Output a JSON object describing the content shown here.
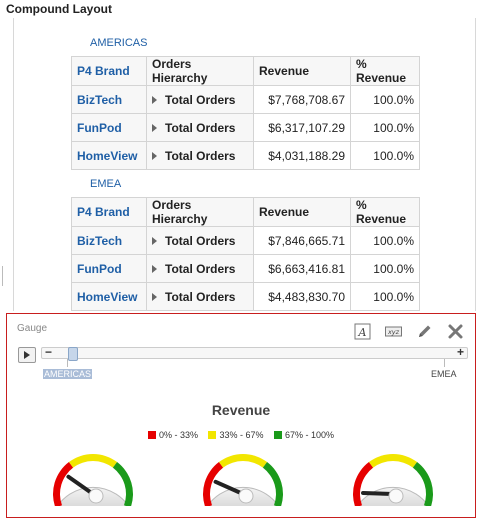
{
  "page_title": "Compound Layout",
  "sections": [
    {
      "label": "AMERICAS",
      "headers": [
        "P4 Brand",
        "Orders Hierarchy",
        "Revenue",
        "% Revenue"
      ],
      "rows": [
        {
          "brand": "BizTech",
          "orders": "Total Orders",
          "revenue": "$7,768,708.67",
          "pct": "100.0%"
        },
        {
          "brand": "FunPod",
          "orders": "Total Orders",
          "revenue": "$6,317,107.29",
          "pct": "100.0%"
        },
        {
          "brand": "HomeView",
          "orders": "Total Orders",
          "revenue": "$4,031,188.29",
          "pct": "100.0%"
        }
      ]
    },
    {
      "label": "EMEA",
      "headers": [
        "P4 Brand",
        "Orders Hierarchy",
        "Revenue",
        "% Revenue"
      ],
      "rows": [
        {
          "brand": "BizTech",
          "orders": "Total Orders",
          "revenue": "$7,846,665.71",
          "pct": "100.0%"
        },
        {
          "brand": "FunPod",
          "orders": "Total Orders",
          "revenue": "$6,663,416.81",
          "pct": "100.0%"
        },
        {
          "brand": "HomeView",
          "orders": "Total Orders",
          "revenue": "$4,483,830.70",
          "pct": "100.0%"
        }
      ]
    }
  ],
  "gauge_panel": {
    "label": "Gauge",
    "toolbar_icons": [
      "text-format-icon",
      "xyz-icon",
      "pencil-icon",
      "close-icon"
    ],
    "slider": {
      "labels": [
        "AMERICAS",
        "EMEA"
      ],
      "selected": "AMERICAS"
    },
    "chart_title": "Revenue",
    "legend": [
      {
        "label": "0% - 33%",
        "color": "#e60000"
      },
      {
        "label": "33% - 67%",
        "color": "#f2e600"
      },
      {
        "label": "67% - 100%",
        "color": "#1a9a1a"
      }
    ],
    "gauges": [
      {
        "value_fraction": 0.25
      },
      {
        "value_fraction": 0.2
      },
      {
        "value_fraction": 0.1
      }
    ]
  }
}
